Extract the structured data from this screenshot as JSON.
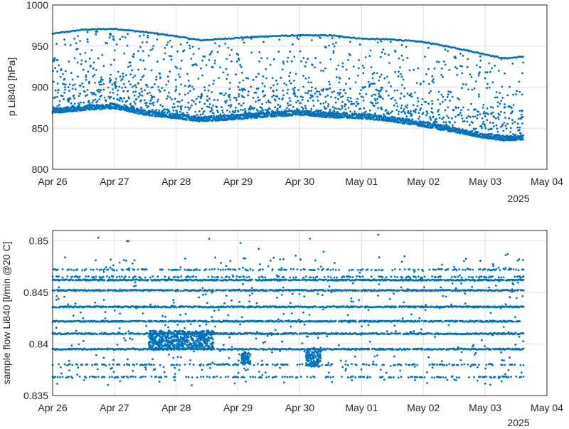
{
  "chart_data": [
    {
      "type": "scatter",
      "ylabel": "p Li840 [hPa]",
      "xlabel_secondary": "2025",
      "x_ticks": [
        "Apr 26",
        "Apr 27",
        "Apr 28",
        "Apr 29",
        "Apr 30",
        "May 01",
        "May 02",
        "May 03",
        "May 04"
      ],
      "y_ticks": [
        "800",
        "850",
        "900",
        "950",
        "1000"
      ],
      "xlim": [
        "2025-04-26",
        "2025-05-04"
      ],
      "ylim": [
        800,
        1000
      ],
      "grid": true,
      "color": "#0072bd",
      "series_description_values": {
        "upper_envelope_hPa": [
          [
            0.0,
            965
          ],
          [
            0.5,
            970
          ],
          [
            1.0,
            971
          ],
          [
            1.5,
            967
          ],
          [
            2.0,
            962
          ],
          [
            2.4,
            957
          ],
          [
            3.0,
            960
          ],
          [
            3.5,
            962
          ],
          [
            4.0,
            963
          ],
          [
            4.5,
            963
          ],
          [
            5.0,
            959
          ],
          [
            5.5,
            958
          ],
          [
            6.0,
            955
          ],
          [
            6.5,
            948
          ],
          [
            7.0,
            940
          ],
          [
            7.3,
            935
          ],
          [
            7.62,
            937
          ]
        ],
        "lower_envelope_hPa": [
          [
            0.0,
            868
          ],
          [
            0.5,
            872
          ],
          [
            1.0,
            874
          ],
          [
            1.5,
            866
          ],
          [
            2.0,
            862
          ],
          [
            2.4,
            858
          ],
          [
            3.0,
            861
          ],
          [
            3.5,
            864
          ],
          [
            4.0,
            866
          ],
          [
            4.5,
            863
          ],
          [
            5.0,
            862
          ],
          [
            5.5,
            858
          ],
          [
            6.0,
            852
          ],
          [
            6.5,
            845
          ],
          [
            7.0,
            838
          ],
          [
            7.3,
            835
          ],
          [
            7.62,
            836
          ]
        ]
      }
    },
    {
      "type": "scatter",
      "ylabel": "sample flow Li840 [l/min @20 C]",
      "xlabel_secondary": "2025",
      "x_ticks": [
        "Apr 26",
        "Apr 27",
        "Apr 28",
        "Apr 29",
        "Apr 30",
        "May 01",
        "May 02",
        "May 03",
        "May 04"
      ],
      "y_ticks": [
        "0.835",
        "0.84",
        "0.845",
        "0.85"
      ],
      "xlim": [
        "2025-04-26",
        "2025-05-04"
      ],
      "ylim": [
        0.835,
        0.851
      ],
      "grid": true,
      "color": "#0072bd",
      "levels_l_per_min": [
        0.8395,
        0.841,
        0.8422,
        0.8436,
        0.8452,
        0.8462
      ],
      "sparse_levels_l_per_min": [
        0.8368,
        0.838,
        0.8465,
        0.8472
      ]
    }
  ]
}
